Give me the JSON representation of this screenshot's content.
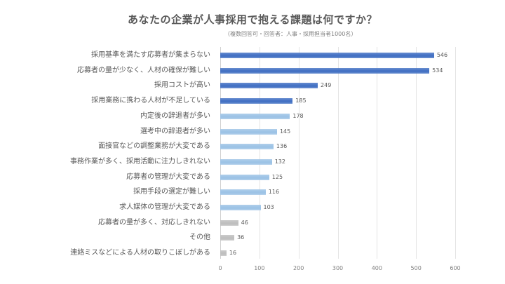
{
  "chart_data": {
    "type": "bar",
    "orientation": "horizontal",
    "title": "あなたの企業が人事採用で抱える課題は何ですか？",
    "subtitle": "（複数回答可・回答者：人事・採用担当者1000名）",
    "categories": [
      "採用基準を満たす応募者が集まらない",
      "応募者の量が少なく、人材の確保が難しい",
      "採用コストが高い",
      "採用業務に携わる人材が不足している",
      "内定後の辞退者が多い",
      "選考中の辞退者が多い",
      "面接官などの調整業務が大変である",
      "事務作業が多く、採用活動に注力しきれない",
      "応募者の管理が大変である",
      "採用手段の選定が難しい",
      "求人媒体の管理が大変である",
      "応募者の量が多く、対応しきれない",
      "その他",
      "連絡ミスなどによる人材の取りこぼしがある"
    ],
    "values": [
      546,
      534,
      249,
      185,
      178,
      145,
      136,
      132,
      125,
      116,
      103,
      46,
      36,
      16
    ],
    "bar_colors": [
      "#4472c4",
      "#4472c4",
      "#4472c4",
      "#4472c4",
      "#9dc3e6",
      "#9dc3e6",
      "#9dc3e6",
      "#9dc3e6",
      "#9dc3e6",
      "#9dc3e6",
      "#9dc3e6",
      "#bfbfbf",
      "#bfbfbf",
      "#bfbfbf"
    ],
    "xlabel": "",
    "ylabel": "",
    "xlim": [
      0,
      600
    ],
    "xticks": [
      "0",
      "100",
      "200",
      "300",
      "400",
      "500",
      "600"
    ],
    "grid": true,
    "legend": null,
    "data_labels": true
  },
  "colors": {
    "dark_blue": "#4472c4",
    "light_blue": "#9dc3e6",
    "gray": "#bfbfbf",
    "text": "#595959"
  }
}
